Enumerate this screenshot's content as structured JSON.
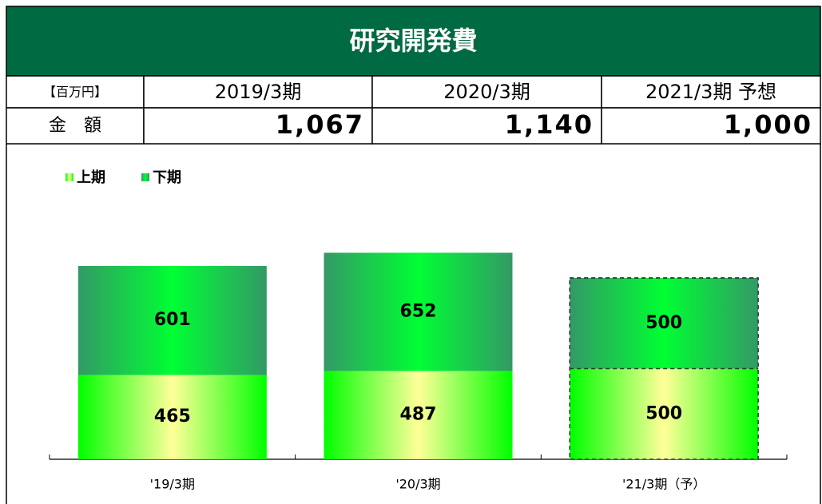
{
  "header": {
    "title": "研究開発費"
  },
  "table": {
    "header": [
      "【百万円】",
      "2019/3期",
      "2020/3期",
      "2021/3期 予想"
    ],
    "rows": [
      [
        "金　額",
        "1,067",
        "1,140",
        "1,000"
      ]
    ]
  },
  "chart_data": {
    "type": "bar",
    "stacked": true,
    "categories": [
      "'19/3期",
      "'20/3期",
      "'21/3期（予）"
    ],
    "series": [
      {
        "name": "上期",
        "color": "#00ff00",
        "highlight": "#ffff99",
        "values": [
          465,
          487,
          500
        ]
      },
      {
        "name": "下期",
        "color": "#339966",
        "highlight": "#00ff33",
        "values": [
          601,
          652,
          500
        ]
      }
    ],
    "outline_dashed": [
      false,
      false,
      true
    ]
  }
}
